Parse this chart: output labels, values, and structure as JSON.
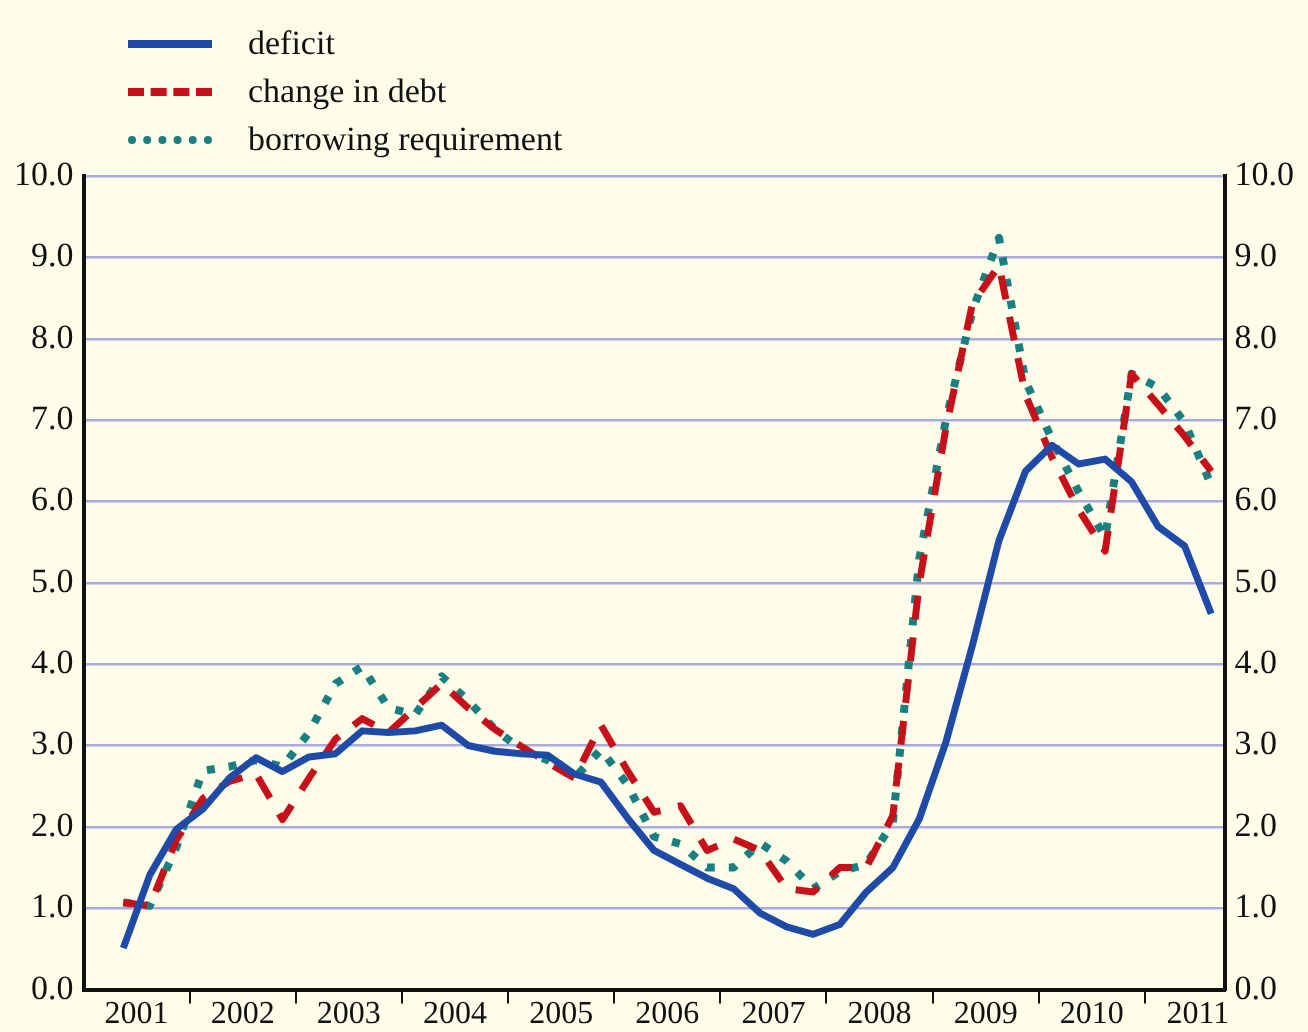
{
  "chart_data": {
    "type": "line",
    "x": [
      2001.375,
      2001.625,
      2001.875,
      2002.125,
      2002.375,
      2002.625,
      2002.875,
      2003.125,
      2003.375,
      2003.625,
      2003.875,
      2004.125,
      2004.375,
      2004.625,
      2004.875,
      2005.125,
      2005.375,
      2005.625,
      2005.875,
      2006.125,
      2006.375,
      2006.625,
      2006.875,
      2007.125,
      2007.375,
      2007.625,
      2007.875,
      2008.125,
      2008.375,
      2008.625,
      2008.875,
      2009.125,
      2009.375,
      2009.625,
      2009.875,
      2010.125,
      2010.375,
      2010.625,
      2010.875,
      2011.125,
      2011.375,
      2011.625
    ],
    "series": [
      {
        "name": "deficit",
        "color": "#1f4aa8",
        "line_style": "solid",
        "values": [
          0.51,
          1.41,
          1.97,
          2.22,
          2.6,
          2.85,
          2.68,
          2.86,
          2.9,
          3.18,
          3.16,
          3.18,
          3.25,
          3.0,
          2.93,
          2.9,
          2.88,
          2.65,
          2.55,
          2.11,
          1.71,
          1.54,
          1.37,
          1.24,
          0.94,
          0.77,
          0.68,
          0.8,
          1.2,
          1.5,
          2.1,
          3.04,
          4.23,
          5.52,
          6.37,
          6.69,
          6.46,
          6.52,
          6.24,
          5.69,
          5.45,
          4.62
        ]
      },
      {
        "name": "change in debt",
        "color": "#c8101a",
        "line_style": "dashed",
        "values": [
          1.07,
          1.03,
          1.84,
          2.35,
          2.56,
          2.65,
          2.09,
          2.6,
          3.08,
          3.33,
          3.16,
          3.46,
          3.76,
          3.46,
          3.2,
          2.99,
          2.79,
          2.6,
          3.25,
          2.69,
          2.18,
          2.26,
          1.71,
          1.85,
          1.71,
          1.24,
          1.2,
          1.5,
          1.5,
          2.14,
          5.0,
          6.9,
          8.43,
          8.9,
          7.31,
          6.54,
          5.9,
          5.39,
          7.57,
          7.19,
          6.8,
          6.37
        ]
      },
      {
        "name": "borrowing requirement",
        "color": "#1a7f80",
        "line_style": "dotted",
        "values": [
          1.07,
          1.03,
          1.75,
          2.69,
          2.74,
          2.82,
          2.74,
          3.16,
          3.76,
          3.97,
          3.46,
          3.38,
          3.85,
          3.55,
          3.2,
          2.95,
          2.82,
          2.6,
          2.95,
          2.52,
          1.88,
          1.79,
          1.5,
          1.5,
          1.8,
          1.58,
          1.24,
          1.45,
          1.54,
          2.05,
          5.3,
          7.0,
          8.34,
          9.24,
          7.48,
          6.76,
          6.12,
          5.56,
          7.57,
          7.4,
          6.97,
          6.2
        ]
      }
    ],
    "xlim": [
      2001,
      2011.75
    ],
    "xticks": [
      {
        "value": 2001.5,
        "label": "2001"
      },
      {
        "value": 2002,
        "label": null
      },
      {
        "value": 2002.5,
        "label": "2002"
      },
      {
        "value": 2003,
        "label": null
      },
      {
        "value": 2003.5,
        "label": "2003"
      },
      {
        "value": 2004,
        "label": null
      },
      {
        "value": 2004.5,
        "label": "2004"
      },
      {
        "value": 2005,
        "label": null
      },
      {
        "value": 2005.5,
        "label": "2005"
      },
      {
        "value": 2006,
        "label": null
      },
      {
        "value": 2006.5,
        "label": "2006"
      },
      {
        "value": 2007,
        "label": null
      },
      {
        "value": 2007.5,
        "label": "2007"
      },
      {
        "value": 2008,
        "label": null
      },
      {
        "value": 2008.5,
        "label": "2008"
      },
      {
        "value": 2009,
        "label": null
      },
      {
        "value": 2009.5,
        "label": "2009"
      },
      {
        "value": 2010,
        "label": null
      },
      {
        "value": 2010.5,
        "label": "2010"
      },
      {
        "value": 2011,
        "label": null
      },
      {
        "value": 2011.5,
        "label": "2011"
      }
    ],
    "ylim": [
      0,
      10
    ],
    "yticks": [
      {
        "value": 0,
        "label": "0.0"
      },
      {
        "value": 1,
        "label": "1.0"
      },
      {
        "value": 2,
        "label": "2.0"
      },
      {
        "value": 3,
        "label": "3.0"
      },
      {
        "value": 4,
        "label": "4.0"
      },
      {
        "value": 5,
        "label": "5.0"
      },
      {
        "value": 6,
        "label": "6.0"
      },
      {
        "value": 7,
        "label": "7.0"
      },
      {
        "value": 8,
        "label": "8.0"
      },
      {
        "value": 9,
        "label": "9.0"
      },
      {
        "value": 10,
        "label": "10.0"
      }
    ],
    "y2lim": [
      0,
      10
    ],
    "y2ticks": [
      {
        "value": 0,
        "label": "0.0"
      },
      {
        "value": 1,
        "label": "1.0"
      },
      {
        "value": 2,
        "label": "2.0"
      },
      {
        "value": 3,
        "label": "3.0"
      },
      {
        "value": 4,
        "label": "4.0"
      },
      {
        "value": 5,
        "label": "5.0"
      },
      {
        "value": 6,
        "label": "6.0"
      },
      {
        "value": 7,
        "label": "7.0"
      },
      {
        "value": 8,
        "label": "8.0"
      },
      {
        "value": 9,
        "label": "9.0"
      },
      {
        "value": 10,
        "label": "10.0"
      }
    ],
    "grid": "y",
    "legend": "top left",
    "marker": "none"
  }
}
